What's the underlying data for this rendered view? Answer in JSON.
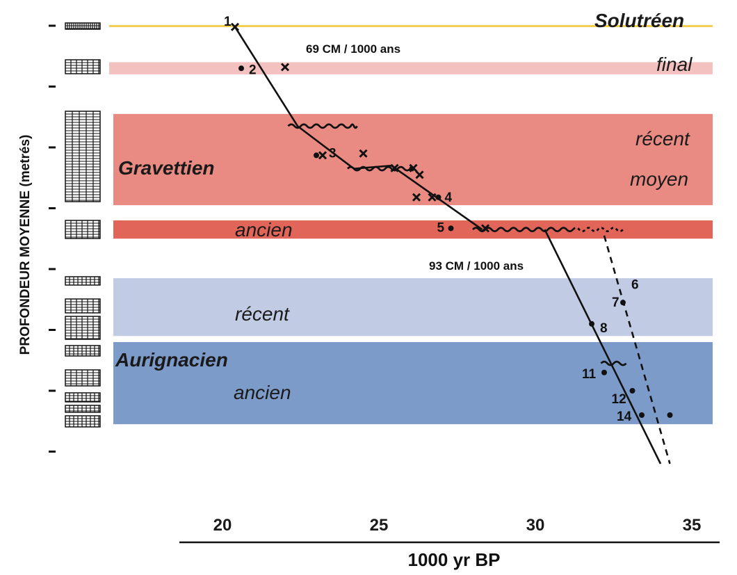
{
  "chart_data": {
    "type": "scatter",
    "xlabel": "1000 yr BP",
    "ylabel": "PROFONDEUR MOYENNE (metrés)",
    "x_ticks": [
      20,
      25,
      30,
      35
    ],
    "xlim": [
      16.8,
      35.8
    ],
    "ylim_depth_units": [
      0,
      7
    ],
    "bands": [
      {
        "key": "solutreen",
        "name": "Solutréen",
        "y0": 0.0,
        "y1": 0.03,
        "color": "#f2cf4e"
      },
      {
        "key": "sol_final",
        "name": "final",
        "y0": 0.6,
        "y1": 0.8,
        "color": "#f3c1bf"
      },
      {
        "key": "grav_recent_moyen",
        "name": "récent / moyen",
        "y0": 1.45,
        "y1": 2.95,
        "color": "#e98a83"
      },
      {
        "key": "grav_ancien",
        "name": "ancien",
        "y0": 3.2,
        "y1": 3.5,
        "color": "#e2655a"
      },
      {
        "key": "aur_recent",
        "name": "récent",
        "y0": 4.15,
        "y1": 5.1,
        "color": "#c1cce4"
      },
      {
        "key": "aur_ancien",
        "name": "ancien",
        "y0": 5.2,
        "y1": 6.55,
        "color": "#7d9bc9"
      }
    ],
    "band_labels": {
      "solutreen": "Solutréen",
      "final": "final",
      "recent_grav": "récent",
      "moyen": "moyen",
      "gravettien": "Gravettien",
      "ancien_grav": "ancien",
      "recent_aur": "récent",
      "aurignacien": "Aurignacien",
      "ancien_aur": "ancien"
    },
    "rate_labels": [
      "69 CM / 1000 ans",
      "93 CM / 1000 ans"
    ],
    "regression_lines": [
      {
        "name": "69 CM / 1000 ans",
        "points": [
          [
            20.4,
            0.02
          ],
          [
            22.4,
            1.65
          ],
          [
            24.2,
            2.35
          ],
          [
            25.4,
            2.3
          ],
          [
            28.3,
            3.35
          ]
        ]
      },
      {
        "name": "93 CM / 1000 ans",
        "points": [
          [
            30.3,
            3.35
          ],
          [
            34.0,
            7.2
          ]
        ]
      },
      {
        "name": "dashed",
        "dashed": true,
        "points": [
          [
            32.2,
            3.45
          ],
          [
            34.3,
            7.2
          ]
        ]
      }
    ],
    "wavy_unconformities": [
      {
        "x0": 22.1,
        "x1": 24.3,
        "y": 1.65
      },
      {
        "x0": 24.0,
        "x1": 26.1,
        "y": 2.35
      },
      {
        "x0": 28.0,
        "x1": 32.8,
        "y": 3.35,
        "dotted_from": 31.2
      },
      {
        "x0": 32.1,
        "x1": 32.9,
        "y": 5.55
      }
    ],
    "points": [
      {
        "label": "1",
        "x": 20.4,
        "y": 0.02,
        "marker": "x"
      },
      {
        "label": "2",
        "x": 20.6,
        "y": 0.7,
        "marker": "dot"
      },
      {
        "label": "",
        "x": 22.0,
        "y": 0.68,
        "marker": "x"
      },
      {
        "label": "3",
        "x": 23.0,
        "y": 2.13,
        "marker": "dot"
      },
      {
        "label": "",
        "x": 23.2,
        "y": 2.13,
        "marker": "x"
      },
      {
        "label": "",
        "x": 24.5,
        "y": 2.1,
        "marker": "x"
      },
      {
        "label": "",
        "x": 25.5,
        "y": 2.34,
        "marker": "x"
      },
      {
        "label": "",
        "x": 26.1,
        "y": 2.34,
        "marker": "x"
      },
      {
        "label": "",
        "x": 26.3,
        "y": 2.45,
        "marker": "x"
      },
      {
        "label": "",
        "x": 26.2,
        "y": 2.82,
        "marker": "x"
      },
      {
        "label": "",
        "x": 26.7,
        "y": 2.82,
        "marker": "x"
      },
      {
        "label": "4",
        "x": 26.9,
        "y": 2.82,
        "marker": "dot"
      },
      {
        "label": "5",
        "x": 27.3,
        "y": 3.33,
        "marker": "dot"
      },
      {
        "label": "",
        "x": 28.4,
        "y": 3.33,
        "marker": "x"
      },
      {
        "label": "6",
        "x": 32.8,
        "y": 4.3,
        "marker": "none"
      },
      {
        "label": "7",
        "x": 32.8,
        "y": 4.55,
        "marker": "dot"
      },
      {
        "label": "8",
        "x": 31.8,
        "y": 4.9,
        "marker": "dot"
      },
      {
        "label": "11",
        "x": 32.2,
        "y": 5.7,
        "marker": "dot"
      },
      {
        "label": "12",
        "x": 33.1,
        "y": 6.0,
        "marker": "dot"
      },
      {
        "label": "14",
        "x": 33.4,
        "y": 6.4,
        "marker": "dot"
      },
      {
        "label": "",
        "x": 34.3,
        "y": 6.4,
        "marker": "dot"
      }
    ]
  }
}
